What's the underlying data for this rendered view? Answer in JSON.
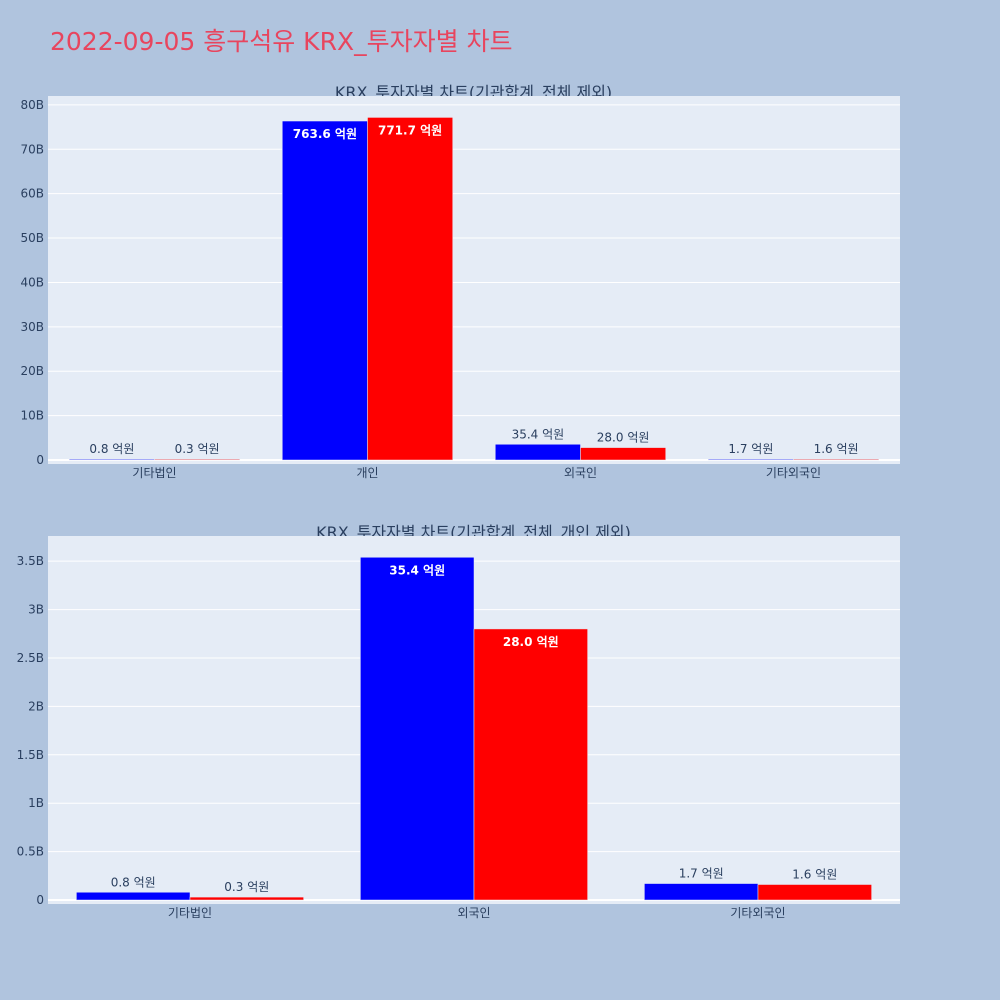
{
  "title": "2022-09-05 흥구석유 KRX_투자자별 차트",
  "colors": {
    "background": "#b0c4de",
    "plot_bg": "#e5ecf6",
    "title": "#e8455e",
    "text": "#2a3f5f",
    "grid": "#ffffff",
    "series_buy": "#0000ff",
    "series_sell": "#ff0000"
  },
  "chart_data": [
    {
      "type": "bar",
      "title": "KRX_투자자별 차트(기관합계_전체 제외)",
      "categories": [
        "기타법인",
        "개인",
        "외국인",
        "기타외국인"
      ],
      "series": [
        {
          "color": "#0000ff",
          "values": [
            80000000,
            76360000000,
            3540000000,
            170000000
          ],
          "labels": [
            "0.8 억원",
            "763.6 억원",
            "35.4 억원",
            "1.7 억원"
          ]
        },
        {
          "color": "#ff0000",
          "values": [
            30000000,
            77170000000,
            2800000000,
            160000000
          ],
          "labels": [
            "0.3 억원",
            "771.7 억원",
            "28.0 억원",
            "1.6 억원"
          ]
        }
      ],
      "ylim": [
        0,
        82000000000
      ],
      "yticks": [
        0,
        10000000000,
        20000000000,
        30000000000,
        40000000000,
        50000000000,
        60000000000,
        70000000000,
        80000000000
      ],
      "ytick_labels": [
        "0",
        "10B",
        "20B",
        "30B",
        "40B",
        "50B",
        "60B",
        "70B",
        "80B"
      ],
      "grid": true,
      "xlabel": "",
      "ylabel": ""
    },
    {
      "type": "bar",
      "title": "KRX_투자자별 차트(기관합계_전체_개인 제외)",
      "categories": [
        "기타법인",
        "외국인",
        "기타외국인"
      ],
      "series": [
        {
          "color": "#0000ff",
          "values": [
            80000000,
            3540000000,
            170000000
          ],
          "labels": [
            "0.8 억원",
            "35.4 억원",
            "1.7 억원"
          ]
        },
        {
          "color": "#ff0000",
          "values": [
            30000000,
            2800000000,
            160000000
          ],
          "labels": [
            "0.3 억원",
            "28.0 억원",
            "1.6 억원"
          ]
        }
      ],
      "ylim": [
        0,
        3760000000
      ],
      "yticks": [
        0,
        500000000,
        1000000000,
        1500000000,
        2000000000,
        2500000000,
        3000000000,
        3500000000
      ],
      "ytick_labels": [
        "0",
        "0.5B",
        "1B",
        "1.5B",
        "2B",
        "2.5B",
        "3B",
        "3.5B"
      ],
      "grid": true,
      "xlabel": "",
      "ylabel": ""
    }
  ]
}
